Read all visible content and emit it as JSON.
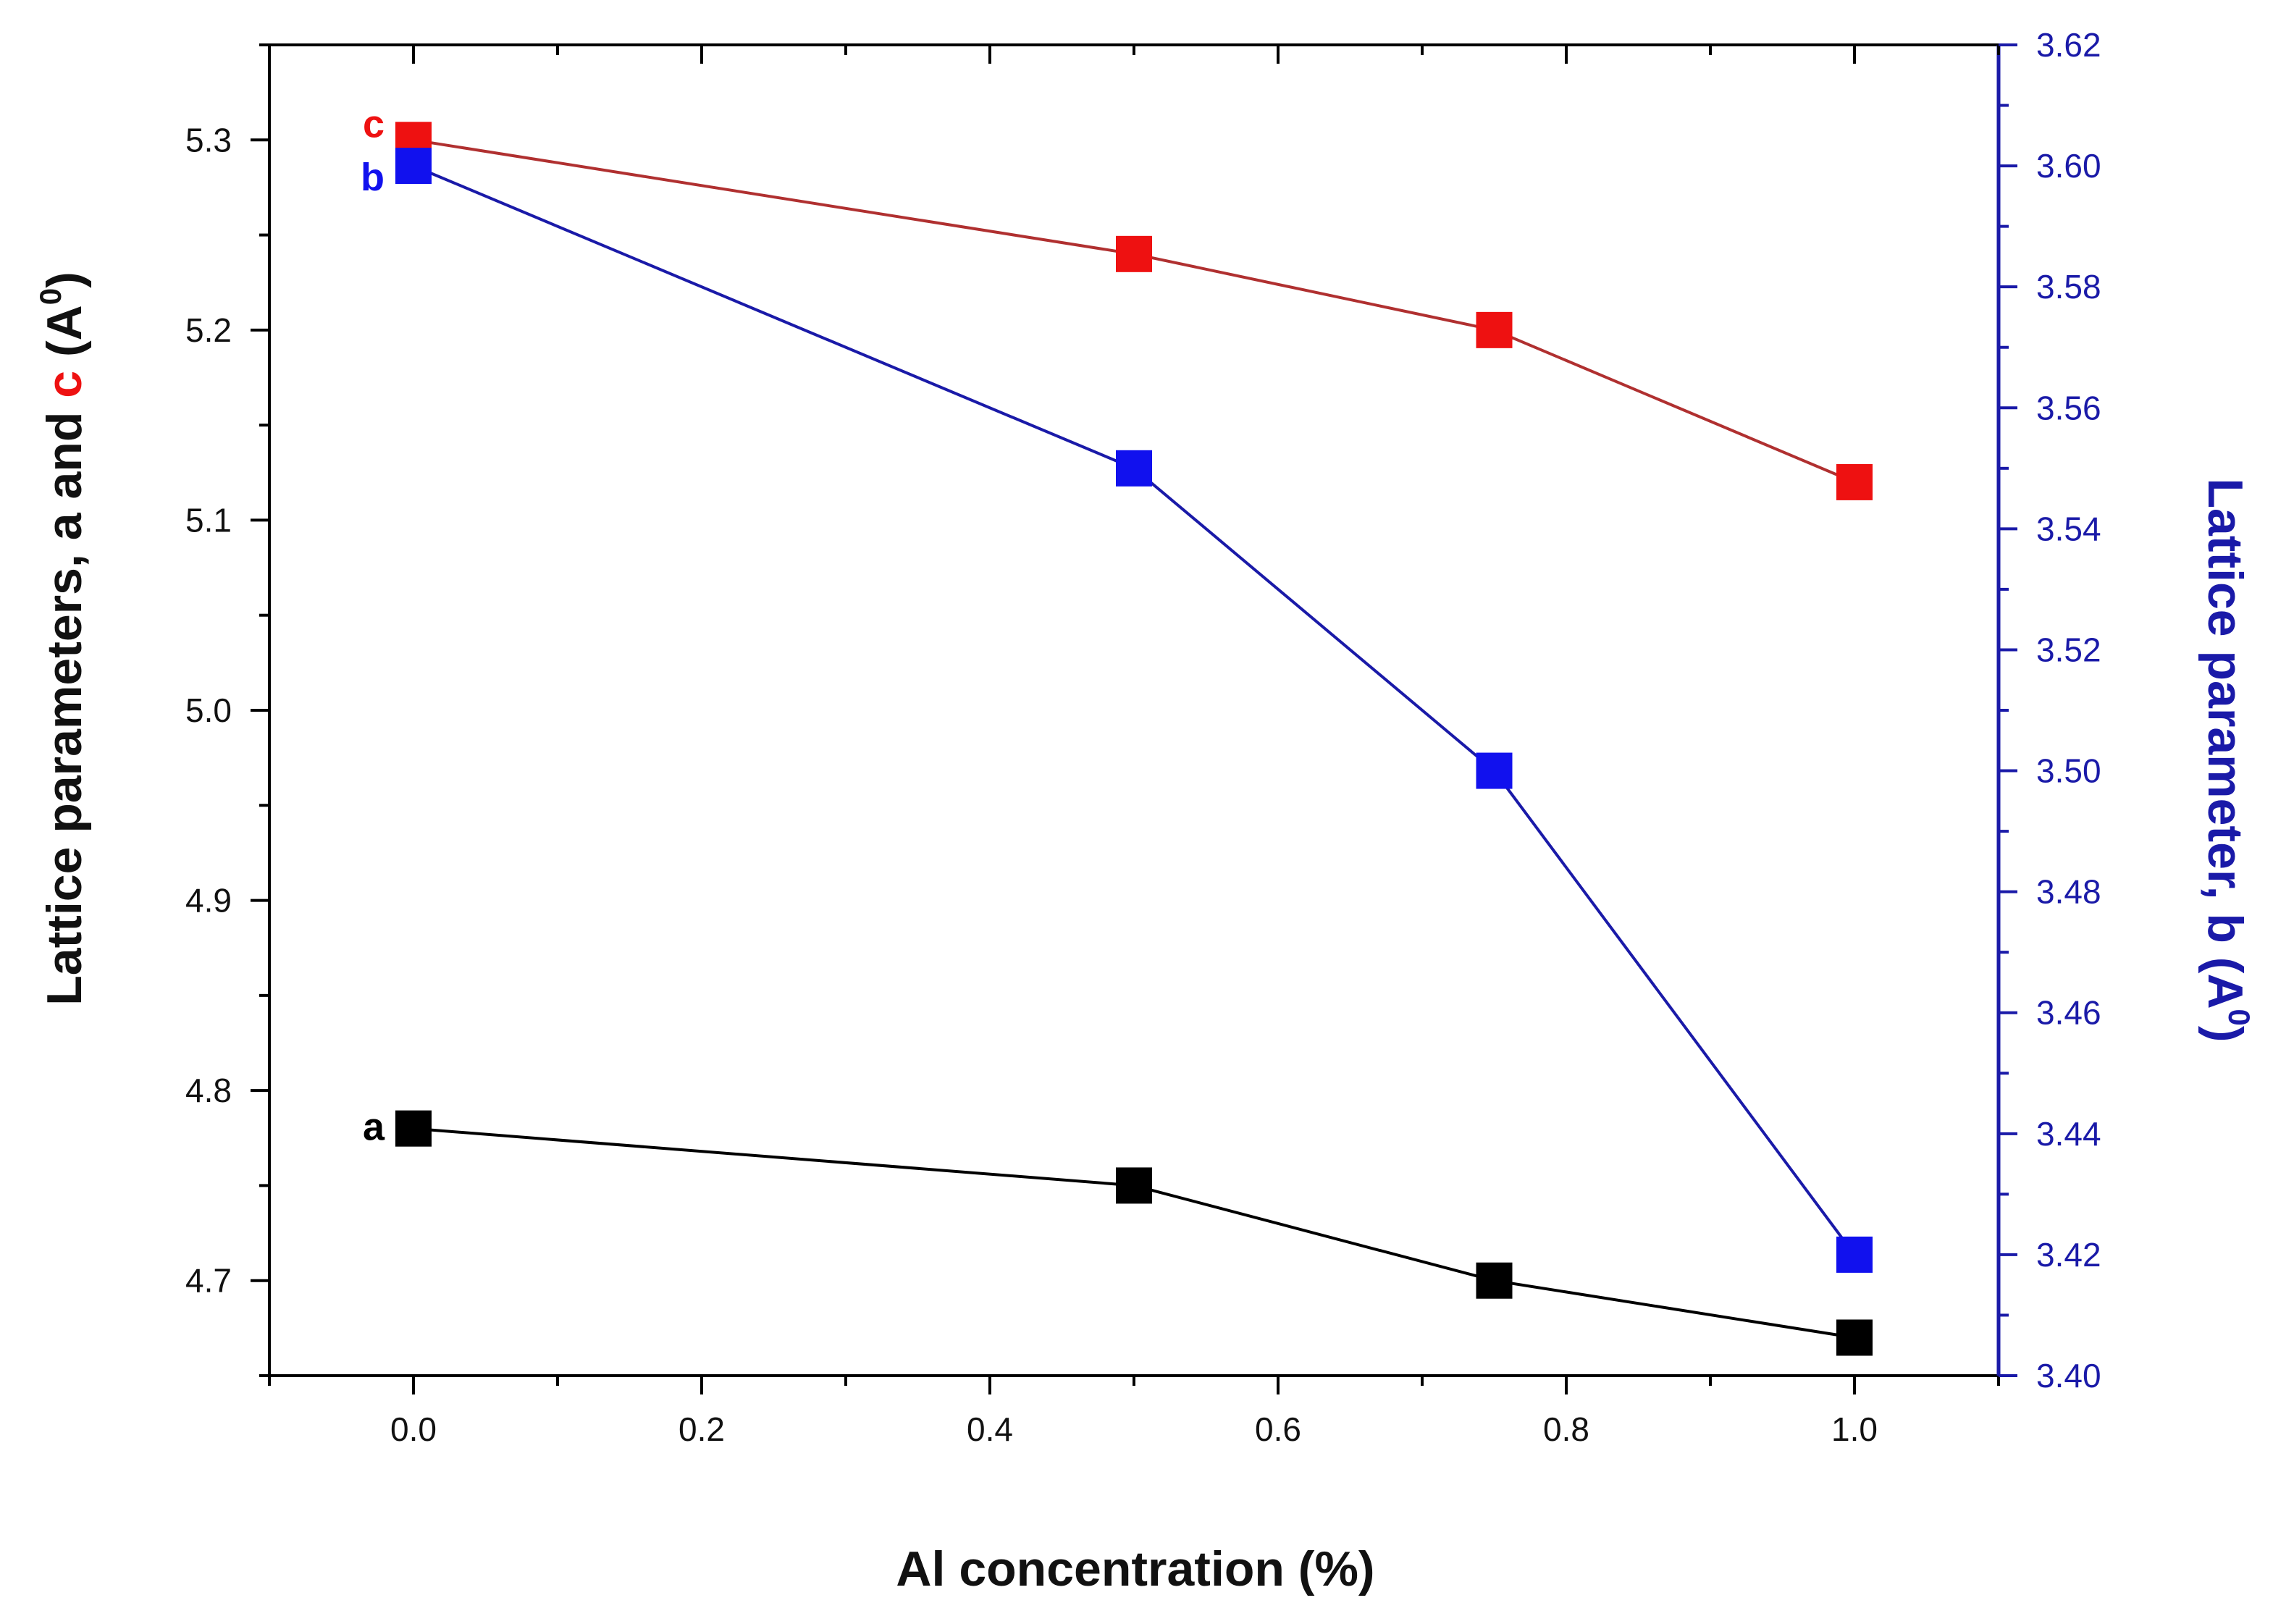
{
  "chart_data": {
    "type": "line",
    "xlabel": "Al concentration (%)",
    "ylabel_left": {
      "prefix": "Lattice parameters, a and ",
      "highlight": "c",
      "suffix": " (A",
      "superscript": "0",
      "close": ")"
    },
    "ylabel_right": {
      "text": "Lattice parameter, b (A",
      "superscript": "0",
      "close": ")"
    },
    "x": [
      0.0,
      0.5,
      0.75,
      1.0
    ],
    "xlim": [
      -0.1,
      1.1
    ],
    "ylim_left": [
      4.65,
      5.35
    ],
    "ylim_right": [
      3.4,
      3.62
    ],
    "x_ticks": [
      "0.0",
      "0.2",
      "0.4",
      "0.6",
      "0.8",
      "1.0"
    ],
    "y_ticks_left": [
      "4.7",
      "4.8",
      "4.9",
      "5.0",
      "5.1",
      "5.2",
      "5.3"
    ],
    "y_ticks_right": [
      "3.40",
      "3.42",
      "3.44",
      "3.46",
      "3.48",
      "3.50",
      "3.52",
      "3.54",
      "3.56",
      "3.58",
      "3.60",
      "3.62"
    ],
    "series": [
      {
        "name": "a",
        "axis": "left",
        "color": "#000000",
        "values": [
          4.78,
          4.75,
          4.7,
          4.67
        ]
      },
      {
        "name": "c",
        "axis": "left",
        "color": "#ee1111",
        "values": [
          5.3,
          5.24,
          5.2,
          5.12
        ]
      },
      {
        "name": "b",
        "axis": "right",
        "color": "#1111ee",
        "values": [
          3.6,
          3.55,
          3.5,
          3.42
        ]
      }
    ],
    "colors": {
      "left_axis": "#000000",
      "right_axis": "#1a1aa8",
      "c_line": "#b03030",
      "b_line": "#1a1aa8"
    }
  }
}
